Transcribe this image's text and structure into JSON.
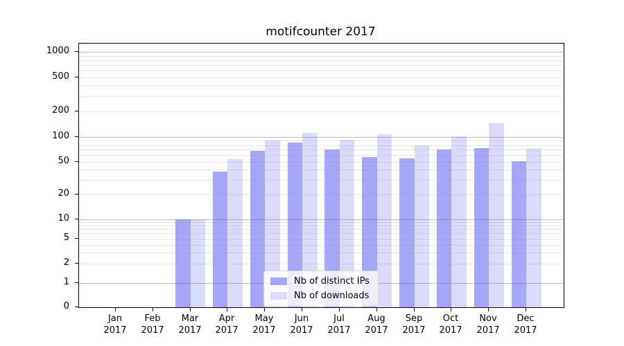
{
  "title": "motifcounter 2017",
  "legend": {
    "items": [
      {
        "label": "Nb of distinct IPs",
        "color": "#a6a6f8"
      },
      {
        "label": "Nb of downloads",
        "color": "#dadafa"
      }
    ]
  },
  "colors": {
    "bar_distinct_ips": "#a6a6f8",
    "bar_downloads": "#dadafa",
    "major_gridline": "rgba(110,110,110,0.45)",
    "minor_gridline": "rgba(150,150,150,0.25)",
    "axis_spine": "#000000"
  },
  "y_axis": {
    "tick_labels": [
      "1000",
      "500",
      "200",
      "100",
      "50",
      "20",
      "10",
      "5",
      "2",
      "1",
      "0"
    ],
    "tick_values": [
      1000,
      500,
      200,
      100,
      50,
      20,
      10,
      5,
      2,
      1,
      0
    ]
  },
  "x_axis": {
    "months": [
      "Jan",
      "Feb",
      "Mar",
      "Apr",
      "May",
      "Jun",
      "Jul",
      "Aug",
      "Sep",
      "Oct",
      "Nov",
      "Dec"
    ],
    "year": "2017"
  },
  "chart_data": {
    "type": "bar",
    "title": "motifcounter 2017",
    "categories": [
      "Jan 2017",
      "Feb 2017",
      "Mar 2017",
      "Apr 2017",
      "May 2017",
      "Jun 2017",
      "Jul 2017",
      "Aug 2017",
      "Sep 2017",
      "Oct 2017",
      "Nov 2017",
      "Dec 2017"
    ],
    "series": [
      {
        "name": "Nb of distinct IPs",
        "color": "#a6a6f8",
        "values": [
          0,
          0,
          10,
          38,
          68,
          85,
          70,
          57,
          55,
          71,
          74,
          51
        ]
      },
      {
        "name": "Nb of downloads",
        "color": "#dadafa",
        "values": [
          0,
          0,
          10,
          54,
          90,
          112,
          92,
          108,
          80,
          102,
          145,
          72
        ]
      }
    ],
    "xlabel": "",
    "ylabel": "",
    "yscale": "symlog",
    "yticks": [
      0,
      1,
      2,
      5,
      10,
      20,
      50,
      100,
      200,
      500,
      1000
    ],
    "minor_gridlines": [
      2,
      3,
      4,
      5,
      6,
      7,
      8,
      9,
      20,
      30,
      40,
      50,
      60,
      70,
      80,
      90,
      200,
      300,
      400,
      500,
      600,
      700,
      800,
      900
    ],
    "major_gridlines": [
      1,
      10,
      100,
      1000
    ],
    "ylim": [
      0,
      1300
    ],
    "grid": "horizontal, drawn over bars",
    "legend_position": "inside lower-center"
  }
}
